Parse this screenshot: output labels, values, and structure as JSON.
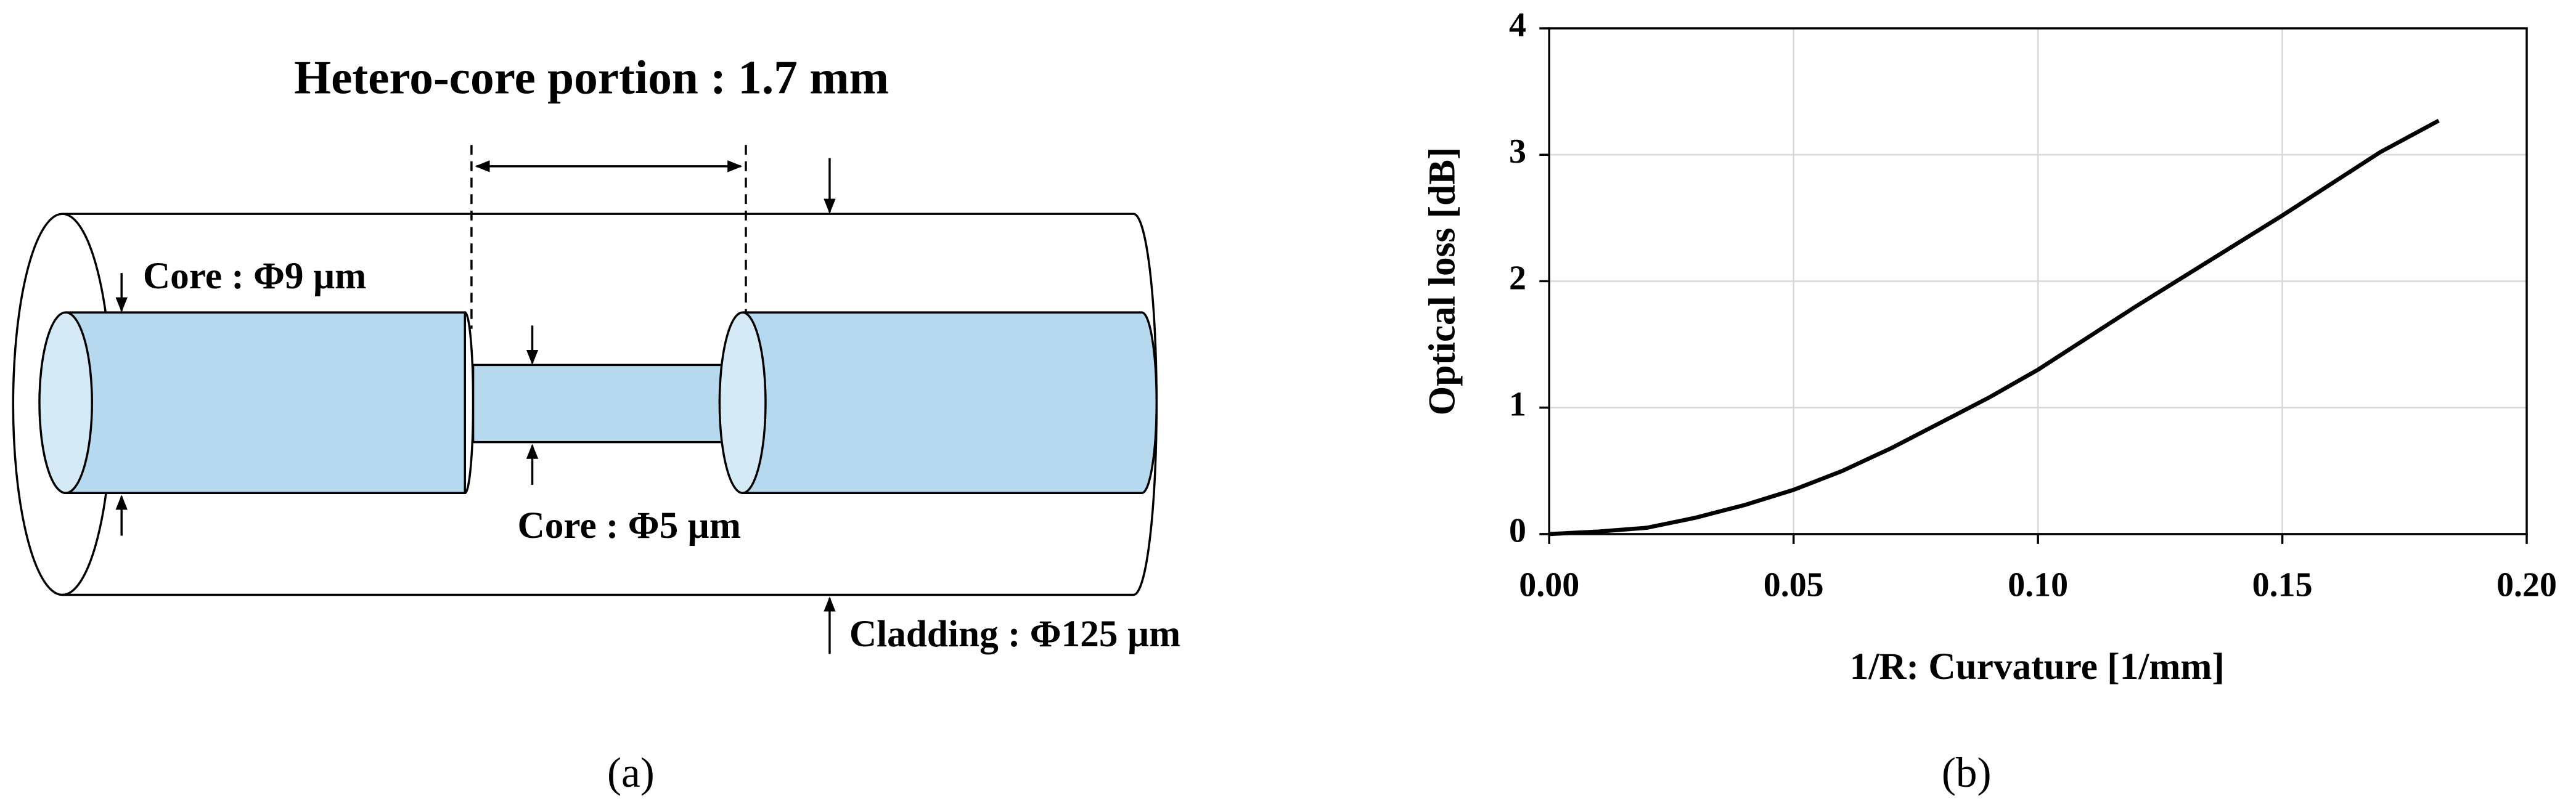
{
  "diagram": {
    "title": "Hetero-core portion : 1.7 mm",
    "core_left": "Core : Φ9 µm",
    "core_mid": "Core : Φ5 µm",
    "cladding": "Cladding : Φ125 µm"
  },
  "panels": {
    "a": "(a)",
    "b": "(b)"
  },
  "chart_data": {
    "type": "line",
    "x_label": "1/R: Curvature [1/mm]",
    "y_label": "Optical loss [dB]",
    "x": [
      0,
      0.01,
      0.02,
      0.03,
      0.04,
      0.05,
      0.06,
      0.07,
      0.08,
      0.09,
      0.1,
      0.11,
      0.12,
      0.13,
      0.14,
      0.15,
      0.16,
      0.17,
      0.182
    ],
    "values": [
      0,
      0.02,
      0.05,
      0.13,
      0.23,
      0.35,
      0.5,
      0.68,
      0.88,
      1.08,
      1.3,
      1.55,
      1.8,
      2.04,
      2.28,
      2.52,
      2.77,
      3.02,
      3.27
    ],
    "color": "#000000",
    "xlim": [
      0,
      0.2
    ],
    "ylim": [
      0,
      4
    ],
    "xticks": [
      {
        "value": 0,
        "label": "0.00"
      },
      {
        "value": 0.05,
        "label": "0.05"
      },
      {
        "value": 0.1,
        "label": "0.10"
      },
      {
        "value": 0.15,
        "label": "0.15"
      },
      {
        "value": 0.2,
        "label": "0.20"
      }
    ],
    "yticks": [
      0,
      1,
      2,
      3,
      4
    ],
    "grid": true
  }
}
